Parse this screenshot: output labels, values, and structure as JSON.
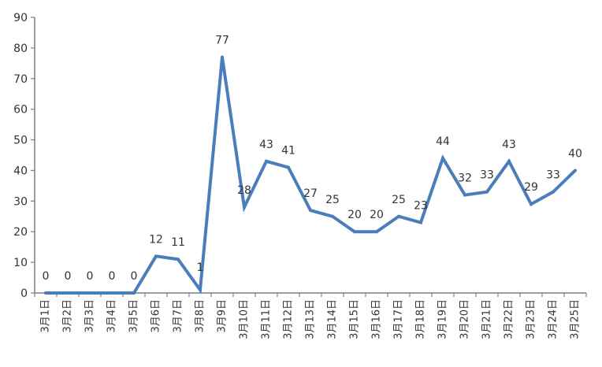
{
  "chart_data": {
    "type": "line",
    "title": "",
    "xlabel": "",
    "ylabel": "",
    "ylim": [
      0,
      90
    ],
    "yticks": [
      0,
      10,
      20,
      30,
      40,
      50,
      60,
      70,
      80,
      90
    ],
    "grid": false,
    "legend": "none",
    "categories": [
      "3月1日",
      "3月2日",
      "3月3日",
      "3月4日",
      "3月5日",
      "3月6日",
      "3月7日",
      "3月8日",
      "3月9日",
      "3月10日",
      "3月11日",
      "3月12日",
      "3月13日",
      "3月14日",
      "3月15日",
      "3月16日",
      "3月17日",
      "3月18日",
      "3月19日",
      "3月20日",
      "3月21日",
      "3月22日",
      "3月23日",
      "3月24日",
      "3月25日"
    ],
    "series": [
      {
        "name": "",
        "values": [
          0,
          0,
          0,
          0,
          0,
          12,
          11,
          1,
          77,
          28,
          43,
          41,
          27,
          25,
          20,
          20,
          25,
          23,
          44,
          32,
          33,
          43,
          29,
          33,
          40
        ]
      }
    ],
    "colors": {
      "line": "#4a7ebb",
      "axis": "#7f7f7f",
      "text": "#333333"
    }
  }
}
